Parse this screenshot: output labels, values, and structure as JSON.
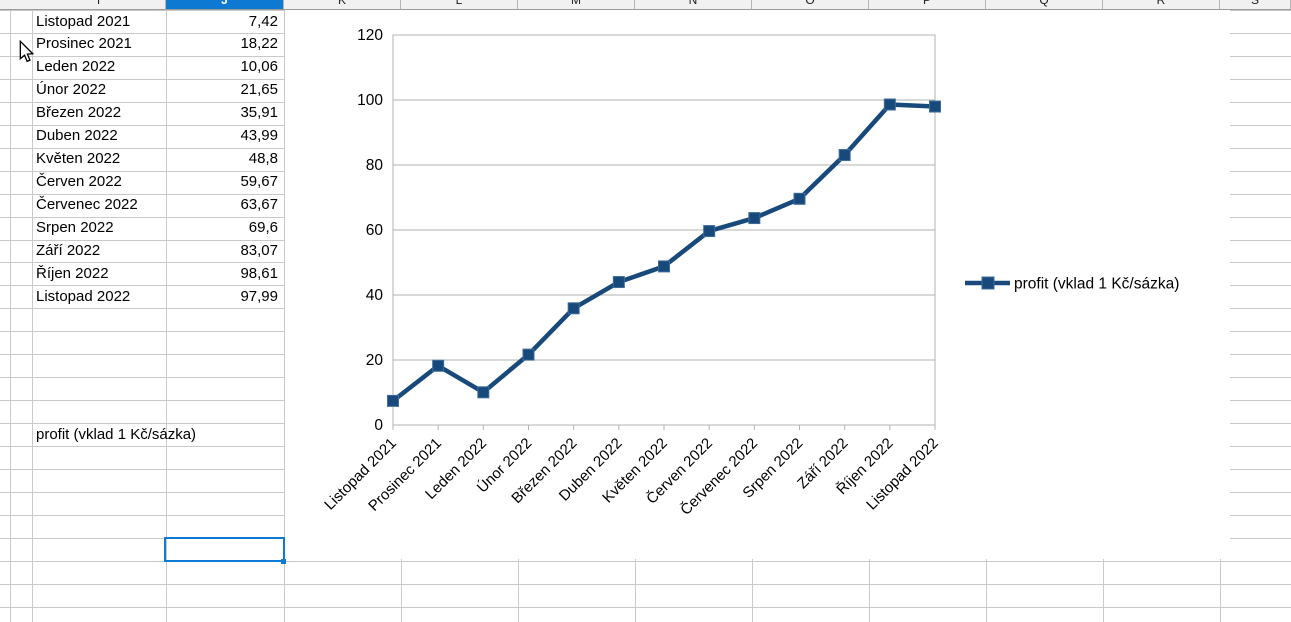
{
  "spreadsheet": {
    "column_headers": [
      {
        "label": "I",
        "selected": false
      },
      {
        "label": "J",
        "selected": true
      },
      {
        "label": "K",
        "selected": false
      },
      {
        "label": "L",
        "selected": false
      },
      {
        "label": "M",
        "selected": false
      },
      {
        "label": "N",
        "selected": false
      },
      {
        "label": "O",
        "selected": false
      },
      {
        "label": "P",
        "selected": false
      },
      {
        "label": "Q",
        "selected": false
      },
      {
        "label": "R",
        "selected": false
      },
      {
        "label": "S",
        "selected": false
      }
    ],
    "table": {
      "rows": [
        {
          "label": "Listopad 2021",
          "value": "7,42"
        },
        {
          "label": "Prosinec 2021",
          "value": "18,22"
        },
        {
          "label": "Leden 2022",
          "value": "10,06"
        },
        {
          "label": "Únor 2022",
          "value": "21,65"
        },
        {
          "label": "Březen 2022",
          "value": "35,91"
        },
        {
          "label": "Duben 2022",
          "value": "43,99"
        },
        {
          "label": "Květen 2022",
          "value": "48,8"
        },
        {
          "label": "Červen 2022",
          "value": "59,67"
        },
        {
          "label": "Červenec 2022",
          "value": "63,67"
        },
        {
          "label": "Srpen 2022",
          "value": "69,6"
        },
        {
          "label": "Září 2022",
          "value": "83,07"
        },
        {
          "label": "Říjen 2022",
          "value": "98,61"
        },
        {
          "label": "Listopad 2022",
          "value": "97,99"
        }
      ]
    },
    "series_label_cell": "profit (vklad 1 Kč/sázka)"
  },
  "chart_data": {
    "type": "line",
    "categories": [
      "Listopad 2021",
      "Prosinec 2021",
      "Leden 2022",
      "Únor 2022",
      "Březen 2022",
      "Duben 2022",
      "Květen 2022",
      "Červen 2022",
      "Červenec 2022",
      "Srpen 2022",
      "Září 2022",
      "Říjen 2022",
      "Listopad 2022"
    ],
    "series": [
      {
        "name": "profit (vklad 1 Kč/sázka)",
        "values": [
          7.42,
          18.22,
          10.06,
          21.65,
          35.91,
          43.99,
          48.8,
          59.67,
          63.67,
          69.6,
          83.07,
          98.61,
          97.99
        ]
      }
    ],
    "title": "",
    "xlabel": "",
    "ylabel": "",
    "ylim": [
      0,
      120
    ],
    "ytick_step": 20,
    "grid": true,
    "legend_position": "right",
    "marker": "square"
  },
  "colors": {
    "series": "#17497B",
    "header_selected": "#0E79D2",
    "selection": "#0F7AD6",
    "sheet_grid": "#C9C9C9",
    "chart_grid": "#B3B3B3",
    "text": "#000000"
  }
}
